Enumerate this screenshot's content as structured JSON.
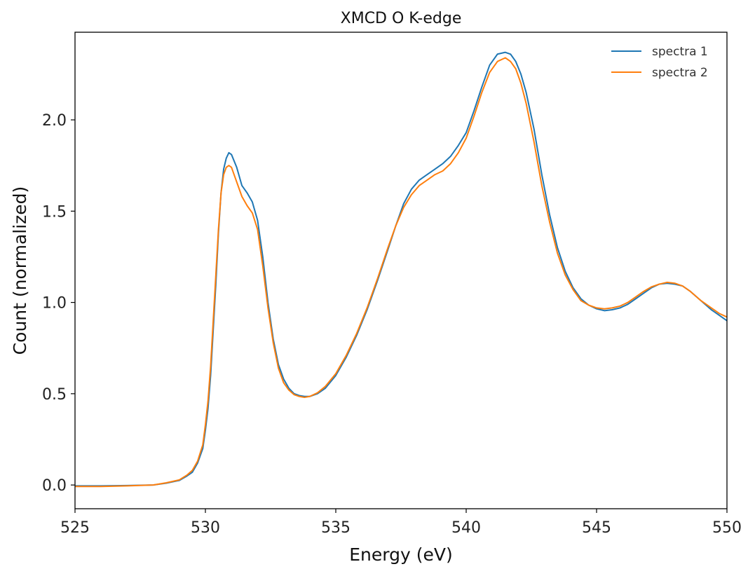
{
  "chart_data": {
    "type": "line",
    "title": "XMCD O K-edge",
    "xlabel": "Energy (eV)",
    "ylabel": "Count (normalized)",
    "xlim": [
      525,
      550
    ],
    "ylim": [
      -0.13,
      2.48
    ],
    "xticks": [
      525,
      530,
      535,
      540,
      545,
      550
    ],
    "yticks": [
      0.0,
      0.5,
      1.0,
      1.5,
      2.0
    ],
    "xtick_labels": [
      "525",
      "530",
      "535",
      "540",
      "545",
      "550"
    ],
    "ytick_labels": [
      "0.0",
      "0.5",
      "1.0",
      "1.5",
      "2.0"
    ],
    "grid": false,
    "legend_position": "top-right",
    "colors": {
      "spectra 1": "#1f77b4",
      "spectra 2": "#ff7f0e"
    },
    "series": [
      {
        "name": "spectra 1",
        "x": [
          525.0,
          526.0,
          527.0,
          528.0,
          528.5,
          529.0,
          529.3,
          529.5,
          529.7,
          529.9,
          530.0,
          530.1,
          530.2,
          530.3,
          530.4,
          530.5,
          530.6,
          530.7,
          530.8,
          530.9,
          531.0,
          531.2,
          531.4,
          531.6,
          531.8,
          532.0,
          532.2,
          532.4,
          532.6,
          532.8,
          533.0,
          533.2,
          533.4,
          533.6,
          533.8,
          534.0,
          534.3,
          534.6,
          535.0,
          535.4,
          535.8,
          536.2,
          536.6,
          537.0,
          537.3,
          537.6,
          537.9,
          538.2,
          538.5,
          538.8,
          539.1,
          539.4,
          539.7,
          540.0,
          540.3,
          540.6,
          540.9,
          541.2,
          541.5,
          541.7,
          541.9,
          542.1,
          542.3,
          542.6,
          542.9,
          543.2,
          543.5,
          543.8,
          544.1,
          544.4,
          544.7,
          545.0,
          545.3,
          545.6,
          545.9,
          546.2,
          546.5,
          546.8,
          547.1,
          547.4,
          547.7,
          548.0,
          548.3,
          548.6,
          549.0,
          549.4,
          549.7,
          550.0
        ],
        "y": [
          -0.005,
          -0.005,
          -0.003,
          0.0,
          0.01,
          0.025,
          0.05,
          0.07,
          0.12,
          0.2,
          0.3,
          0.42,
          0.6,
          0.85,
          1.1,
          1.38,
          1.6,
          1.73,
          1.79,
          1.82,
          1.81,
          1.74,
          1.64,
          1.6,
          1.55,
          1.45,
          1.25,
          1.0,
          0.8,
          0.66,
          0.58,
          0.53,
          0.5,
          0.49,
          0.485,
          0.485,
          0.5,
          0.53,
          0.6,
          0.7,
          0.82,
          0.96,
          1.12,
          1.29,
          1.42,
          1.54,
          1.62,
          1.67,
          1.7,
          1.73,
          1.76,
          1.8,
          1.86,
          1.93,
          2.05,
          2.18,
          2.3,
          2.36,
          2.37,
          2.36,
          2.32,
          2.25,
          2.15,
          1.95,
          1.7,
          1.48,
          1.3,
          1.17,
          1.08,
          1.02,
          0.985,
          0.965,
          0.955,
          0.96,
          0.97,
          0.99,
          1.02,
          1.05,
          1.08,
          1.1,
          1.105,
          1.1,
          1.09,
          1.06,
          1.01,
          0.96,
          0.93,
          0.9
        ]
      },
      {
        "name": "spectra 2",
        "x": [
          525.0,
          526.0,
          527.0,
          528.0,
          528.5,
          529.0,
          529.3,
          529.5,
          529.7,
          529.9,
          530.0,
          530.1,
          530.2,
          530.3,
          530.4,
          530.5,
          530.6,
          530.7,
          530.8,
          530.9,
          531.0,
          531.2,
          531.4,
          531.6,
          531.8,
          532.0,
          532.2,
          532.4,
          532.6,
          532.8,
          533.0,
          533.2,
          533.4,
          533.6,
          533.8,
          534.0,
          534.3,
          534.6,
          535.0,
          535.4,
          535.8,
          536.2,
          536.6,
          537.0,
          537.3,
          537.6,
          537.9,
          538.2,
          538.5,
          538.8,
          539.1,
          539.4,
          539.7,
          540.0,
          540.3,
          540.6,
          540.9,
          541.2,
          541.5,
          541.7,
          541.9,
          542.1,
          542.3,
          542.6,
          542.9,
          543.2,
          543.5,
          543.8,
          544.1,
          544.4,
          544.7,
          545.0,
          545.3,
          545.6,
          545.9,
          546.2,
          546.5,
          546.8,
          547.1,
          547.4,
          547.7,
          548.0,
          548.3,
          548.6,
          549.0,
          549.4,
          549.7,
          550.0
        ],
        "y": [
          -0.008,
          -0.008,
          -0.005,
          0.0,
          0.012,
          0.028,
          0.055,
          0.08,
          0.13,
          0.22,
          0.33,
          0.46,
          0.65,
          0.9,
          1.15,
          1.4,
          1.6,
          1.7,
          1.74,
          1.75,
          1.74,
          1.66,
          1.58,
          1.53,
          1.49,
          1.4,
          1.2,
          0.97,
          0.78,
          0.64,
          0.56,
          0.52,
          0.495,
          0.485,
          0.48,
          0.485,
          0.505,
          0.54,
          0.61,
          0.71,
          0.83,
          0.97,
          1.13,
          1.3,
          1.42,
          1.52,
          1.59,
          1.64,
          1.67,
          1.7,
          1.72,
          1.76,
          1.82,
          1.9,
          2.02,
          2.15,
          2.26,
          2.32,
          2.34,
          2.32,
          2.28,
          2.2,
          2.09,
          1.88,
          1.64,
          1.44,
          1.27,
          1.15,
          1.07,
          1.01,
          0.985,
          0.97,
          0.965,
          0.97,
          0.98,
          1.0,
          1.03,
          1.06,
          1.085,
          1.1,
          1.11,
          1.105,
          1.09,
          1.06,
          1.01,
          0.97,
          0.94,
          0.92
        ]
      }
    ]
  }
}
